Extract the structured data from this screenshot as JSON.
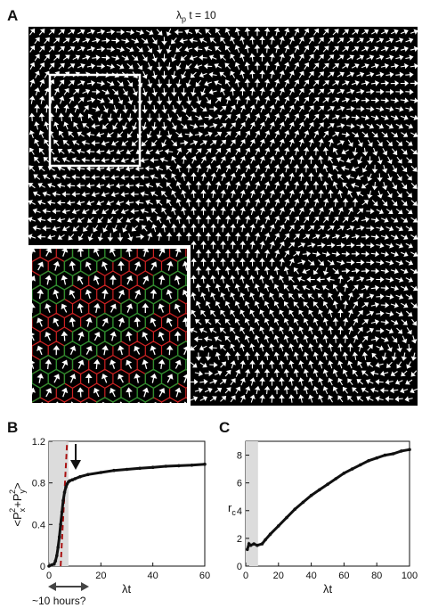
{
  "panels": {
    "A": {
      "letter": "A",
      "title_main": "λ",
      "title_sub": "p",
      "title_rest": " t = 10",
      "colors": {
        "background": "#000000",
        "arrow": "#ffffff",
        "cell_edge_a": "#cc2222",
        "cell_edge_b": "#2e8b2e",
        "highlight_box": "#ffffff"
      }
    },
    "B": {
      "letter": "B",
      "ylabel": "<P_x^2+P_y^2>",
      "ylabel_parts": {
        "base": "<P",
        "sub1": "x",
        "sup1": "2",
        "plus": "+P",
        "sub2": "y",
        "sup2": "2",
        "end": ">"
      },
      "xlabel": "λt",
      "annotation": "~10 hours?",
      "x_ticks": [
        "0",
        "20",
        "40",
        "60"
      ],
      "y_ticks": [
        "0",
        "0.4",
        "0.8",
        "1.2"
      ]
    },
    "C": {
      "letter": "C",
      "ylabel_base": "r",
      "ylabel_sub": "c",
      "xlabel": "λt",
      "x_ticks": [
        "0",
        "20",
        "40",
        "60",
        "80",
        "100"
      ],
      "y_ticks": [
        "0",
        "2",
        "4",
        "6",
        "8"
      ]
    }
  },
  "chart_data": [
    {
      "type": "line",
      "panel": "B",
      "xlabel": "λt",
      "ylabel": "<P_x^2+P_y^2>",
      "xlim": [
        0,
        60
      ],
      "ylim": [
        0,
        1.2
      ],
      "shaded_x_range": [
        0,
        7.5
      ],
      "dashed_line": {
        "x": [
          4.5,
          7.0
        ],
        "y": [
          0.0,
          1.2
        ],
        "color": "#aa1111"
      },
      "arrow_annotation_at": {
        "x": 8,
        "y": 0.88
      },
      "series": [
        {
          "x": [
            0,
            1,
            2,
            2.5,
            3,
            3.5,
            4,
            4.5,
            5,
            5.5,
            6,
            6.5,
            7,
            7.5,
            8,
            9,
            10,
            12,
            15,
            20,
            25,
            30,
            35,
            40,
            45,
            50,
            55,
            60
          ],
          "y": [
            0.0,
            0.01,
            0.02,
            0.05,
            0.1,
            0.18,
            0.28,
            0.4,
            0.52,
            0.63,
            0.71,
            0.76,
            0.79,
            0.81,
            0.82,
            0.83,
            0.84,
            0.86,
            0.88,
            0.9,
            0.92,
            0.93,
            0.94,
            0.95,
            0.96,
            0.965,
            0.97,
            0.98
          ]
        }
      ]
    },
    {
      "type": "line",
      "panel": "C",
      "xlabel": "λt",
      "ylabel": "r_c",
      "xlim": [
        0,
        100
      ],
      "ylim": [
        0,
        9
      ],
      "shaded_x_range": [
        0,
        7.5
      ],
      "series": [
        {
          "x": [
            1,
            2,
            3,
            5,
            7,
            10,
            12,
            15,
            20,
            25,
            30,
            35,
            40,
            45,
            50,
            55,
            60,
            65,
            70,
            75,
            80,
            85,
            90,
            95,
            100
          ],
          "y": [
            1.2,
            1.6,
            1.5,
            1.6,
            1.5,
            1.6,
            1.9,
            2.3,
            2.9,
            3.5,
            4.1,
            4.6,
            5.1,
            5.5,
            5.9,
            6.3,
            6.7,
            7.0,
            7.3,
            7.6,
            7.8,
            8.0,
            8.1,
            8.3,
            8.4
          ]
        }
      ]
    }
  ]
}
